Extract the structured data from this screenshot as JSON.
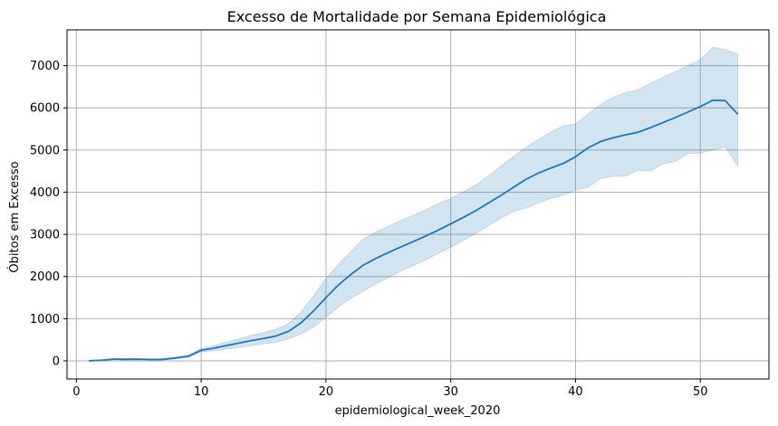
{
  "chart_data": {
    "type": "line",
    "title": "Excesso de Mortalidade por Semana Epidemiológica",
    "xlabel": "epidemiological_week_2020",
    "ylabel": "Óbitos em Excesso",
    "xlim": [
      -0.75,
      55.5
    ],
    "ylim": [
      -430,
      7850
    ],
    "xticks": [
      0,
      10,
      20,
      30,
      40,
      50
    ],
    "yticks": [
      0,
      1000,
      2000,
      3000,
      4000,
      5000,
      6000,
      7000
    ],
    "grid": true,
    "line_color": "#1f77b4",
    "band_color": "#1f77b4",
    "x": [
      1,
      2,
      3,
      4,
      5,
      6,
      7,
      8,
      9,
      10,
      11,
      12,
      13,
      14,
      15,
      16,
      17,
      18,
      19,
      20,
      21,
      22,
      23,
      24,
      25,
      26,
      27,
      28,
      29,
      30,
      31,
      32,
      33,
      34,
      35,
      36,
      37,
      38,
      39,
      40,
      41,
      42,
      43,
      44,
      45,
      46,
      47,
      48,
      49,
      50,
      51,
      52,
      53
    ],
    "series": [
      {
        "values": [
          0,
          15,
          40,
          35,
          40,
          30,
          35,
          70,
          110,
          250,
          300,
          360,
          420,
          480,
          530,
          590,
          700,
          900,
          1180,
          1500,
          1800,
          2050,
          2270,
          2430,
          2570,
          2700,
          2830,
          2960,
          3100,
          3250,
          3400,
          3560,
          3740,
          3920,
          4110,
          4300,
          4450,
          4570,
          4680,
          4840,
          5050,
          5200,
          5290,
          5360,
          5420,
          5530,
          5650,
          5770,
          5900,
          6030,
          6180,
          6170,
          5850
        ],
        "ci_lower": [
          0,
          10,
          25,
          20,
          25,
          20,
          20,
          50,
          90,
          210,
          240,
          280,
          320,
          360,
          400,
          440,
          520,
          640,
          800,
          1030,
          1280,
          1480,
          1650,
          1830,
          1970,
          2130,
          2260,
          2400,
          2550,
          2700,
          2850,
          3020,
          3200,
          3380,
          3540,
          3620,
          3740,
          3850,
          3930,
          4050,
          4120,
          4320,
          4380,
          4380,
          4520,
          4500,
          4670,
          4730,
          4910,
          4930,
          5000,
          5070,
          4620
        ],
        "ci_upper": [
          0,
          20,
          60,
          55,
          55,
          45,
          50,
          90,
          140,
          290,
          360,
          440,
          520,
          600,
          670,
          750,
          880,
          1160,
          1540,
          1950,
          2290,
          2590,
          2890,
          3060,
          3190,
          3330,
          3450,
          3590,
          3730,
          3850,
          4010,
          4170,
          4380,
          4610,
          4840,
          5060,
          5240,
          5420,
          5570,
          5620,
          5850,
          6080,
          6250,
          6360,
          6430,
          6580,
          6720,
          6860,
          7000,
          7140,
          7440,
          7380,
          7280
        ]
      }
    ]
  }
}
